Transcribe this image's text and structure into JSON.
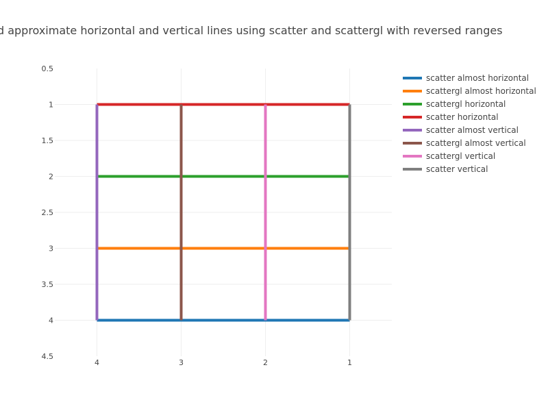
{
  "chart_data": {
    "type": "line",
    "title": "Exact and approximate horizontal and vertical lines using scatter and scattergl with reversed ranges",
    "xlabel": "",
    "ylabel": "",
    "xlim": [
      4.5,
      0.5
    ],
    "ylim": [
      4.5,
      0.5
    ],
    "x_ticks": [
      4,
      3,
      2,
      1
    ],
    "y_ticks": [
      0.5,
      1,
      1.5,
      2,
      2.5,
      3,
      3.5,
      4,
      4.5
    ],
    "grid": true,
    "legend_position": "top-right",
    "series": [
      {
        "name": "scatter almost horizontal",
        "color": "#1f77b4",
        "x": [
          4,
          1
        ],
        "y": [
          4,
          4
        ]
      },
      {
        "name": "scattergl almost horizontal",
        "color": "#ff7f0e",
        "x": [
          4,
          1
        ],
        "y": [
          3,
          3
        ]
      },
      {
        "name": "scattergl horizontal",
        "color": "#2ca02c",
        "x": [
          4,
          1
        ],
        "y": [
          2,
          2
        ]
      },
      {
        "name": "scatter horizontal",
        "color": "#d62728",
        "x": [
          4,
          1
        ],
        "y": [
          1,
          1
        ]
      },
      {
        "name": "scatter almost vertical",
        "color": "#9467bd",
        "x": [
          4,
          4
        ],
        "y": [
          1,
          4
        ]
      },
      {
        "name": "scattergl almost vertical",
        "color": "#8c564b",
        "x": [
          3,
          3
        ],
        "y": [
          1,
          4
        ]
      },
      {
        "name": "scattergl vertical",
        "color": "#e377c2",
        "x": [
          2,
          2
        ],
        "y": [
          1,
          4
        ]
      },
      {
        "name": "scatter vertical",
        "color": "#7f7f7f",
        "x": [
          1,
          1
        ],
        "y": [
          1,
          4
        ]
      }
    ]
  }
}
